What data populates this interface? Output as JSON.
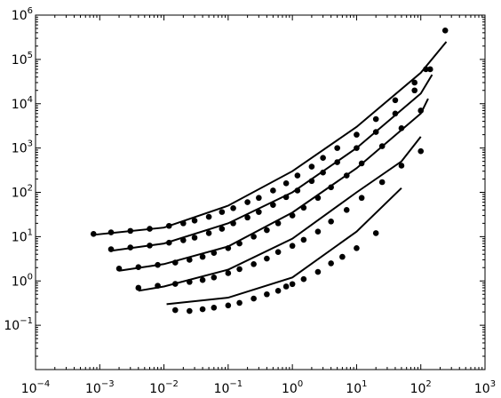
{
  "chart_data": {
    "type": "scatter",
    "title": "",
    "xlabel": "",
    "ylabel": "",
    "xscale": "log",
    "yscale": "log",
    "xlim": [
      0.0001,
      1000
    ],
    "ylim": [
      0.01,
      1000000
    ],
    "grid": false,
    "legend": "none",
    "x_ticks": [
      {
        "base": "10",
        "exp": "−4"
      },
      {
        "base": "10",
        "exp": "−3"
      },
      {
        "base": "10",
        "exp": "−2"
      },
      {
        "base": "10",
        "exp": "−1"
      },
      {
        "base": "10",
        "exp": "0"
      },
      {
        "base": "10",
        "exp": "1"
      },
      {
        "base": "10",
        "exp": "2"
      },
      {
        "base": "10",
        "exp": "3"
      }
    ],
    "y_ticks": [
      {
        "base": "10",
        "exp": "−1"
      },
      {
        "base": "10",
        "exp": "0"
      },
      {
        "base": "10",
        "exp": "1"
      },
      {
        "base": "10",
        "exp": "2"
      },
      {
        "base": "10",
        "exp": "3"
      },
      {
        "base": "10",
        "exp": "4"
      },
      {
        "base": "10",
        "exp": "5"
      },
      {
        "base": "10",
        "exp": "6"
      }
    ],
    "series": [
      {
        "marker_color": "#000000",
        "points": [
          [
            0.0008,
            11.5
          ],
          [
            0.0015,
            12.5
          ],
          [
            0.003,
            13.5
          ],
          [
            0.006,
            15
          ],
          [
            0.012,
            17.5
          ],
          [
            0.02,
            20
          ],
          [
            0.03,
            23
          ],
          [
            0.05,
            28
          ],
          [
            0.08,
            36
          ],
          [
            0.12,
            44
          ],
          [
            0.2,
            60
          ],
          [
            0.3,
            75
          ],
          [
            0.5,
            110
          ],
          [
            0.8,
            160
          ],
          [
            1.2,
            240
          ],
          [
            2,
            380
          ],
          [
            3,
            600
          ],
          [
            5,
            1000
          ],
          [
            10,
            2000
          ],
          [
            20,
            4500
          ],
          [
            40,
            12000
          ],
          [
            80,
            30000
          ],
          [
            120,
            60000
          ],
          [
            240,
            450000
          ]
        ],
        "fit": [
          [
            0.0008,
            11
          ],
          [
            0.01,
            16
          ],
          [
            0.1,
            50
          ],
          [
            1,
            300
          ],
          [
            10,
            3000
          ],
          [
            100,
            50000
          ],
          [
            250,
            250000
          ]
        ]
      },
      {
        "marker_color": "#000000",
        "points": [
          [
            0.0015,
            5.2
          ],
          [
            0.003,
            5.7
          ],
          [
            0.006,
            6.3
          ],
          [
            0.012,
            7.3
          ],
          [
            0.02,
            8.3
          ],
          [
            0.03,
            9.5
          ],
          [
            0.05,
            12
          ],
          [
            0.08,
            15
          ],
          [
            0.12,
            20
          ],
          [
            0.2,
            27
          ],
          [
            0.3,
            36
          ],
          [
            0.5,
            52
          ],
          [
            0.8,
            78
          ],
          [
            1.2,
            110
          ],
          [
            2,
            180
          ],
          [
            3,
            280
          ],
          [
            5,
            480
          ],
          [
            10,
            1000
          ],
          [
            20,
            2300
          ],
          [
            40,
            6000
          ],
          [
            80,
            20000
          ],
          [
            140,
            60000
          ]
        ],
        "fit": [
          [
            0.0015,
            4.8
          ],
          [
            0.01,
            7
          ],
          [
            0.1,
            20
          ],
          [
            1,
            100
          ],
          [
            10,
            1000
          ],
          [
            100,
            17000
          ],
          [
            150,
            45000
          ]
        ]
      },
      {
        "marker_color": "#000000",
        "points": [
          [
            0.002,
            1.9
          ],
          [
            0.004,
            2.05
          ],
          [
            0.008,
            2.3
          ],
          [
            0.015,
            2.6
          ],
          [
            0.025,
            3
          ],
          [
            0.04,
            3.5
          ],
          [
            0.06,
            4.3
          ],
          [
            0.1,
            5.5
          ],
          [
            0.15,
            7
          ],
          [
            0.25,
            10
          ],
          [
            0.4,
            14
          ],
          [
            0.6,
            20
          ],
          [
            1,
            30
          ],
          [
            1.5,
            45
          ],
          [
            2.5,
            75
          ],
          [
            4,
            130
          ],
          [
            7,
            240
          ],
          [
            12,
            450
          ],
          [
            25,
            1100
          ],
          [
            50,
            2800
          ],
          [
            100,
            7000
          ]
        ],
        "fit": [
          [
            0.002,
            1.7
          ],
          [
            0.01,
            2.4
          ],
          [
            0.1,
            6
          ],
          [
            1,
            35
          ],
          [
            10,
            350
          ],
          [
            100,
            6000
          ],
          [
            130,
            13000
          ]
        ]
      },
      {
        "marker_color": "#000000",
        "points": [
          [
            0.004,
            0.7
          ],
          [
            0.008,
            0.78
          ],
          [
            0.015,
            0.86
          ],
          [
            0.025,
            0.95
          ],
          [
            0.04,
            1.05
          ],
          [
            0.06,
            1.2
          ],
          [
            0.1,
            1.5
          ],
          [
            0.15,
            1.85
          ],
          [
            0.25,
            2.4
          ],
          [
            0.4,
            3.2
          ],
          [
            0.6,
            4.5
          ],
          [
            1,
            6.2
          ],
          [
            1.5,
            8.5
          ],
          [
            2.5,
            13
          ],
          [
            4,
            22
          ],
          [
            7,
            40
          ],
          [
            12,
            75
          ],
          [
            25,
            170
          ],
          [
            50,
            400
          ],
          [
            100,
            850
          ]
        ],
        "fit": [
          [
            0.004,
            0.6
          ],
          [
            0.01,
            0.75
          ],
          [
            0.1,
            1.8
          ],
          [
            1,
            9
          ],
          [
            10,
            100
          ],
          [
            50,
            500
          ],
          [
            100,
            1800
          ]
        ]
      },
      {
        "marker_color": "#000000",
        "points": [
          [
            0.015,
            0.22
          ],
          [
            0.025,
            0.21
          ],
          [
            0.04,
            0.23
          ],
          [
            0.06,
            0.25
          ],
          [
            0.1,
            0.28
          ],
          [
            0.15,
            0.32
          ],
          [
            0.25,
            0.4
          ],
          [
            0.4,
            0.5
          ],
          [
            0.6,
            0.6
          ],
          [
            0.8,
            0.75
          ],
          [
            1,
            0.85
          ],
          [
            1.5,
            1.1
          ],
          [
            2.5,
            1.6
          ],
          [
            4,
            2.5
          ],
          [
            6,
            3.5
          ],
          [
            10,
            5.5
          ],
          [
            20,
            12
          ]
        ],
        "fit": [
          [
            0.011,
            0.3
          ],
          [
            0.1,
            0.42
          ],
          [
            1,
            1.2
          ],
          [
            10,
            13
          ],
          [
            50,
            125
          ]
        ]
      }
    ]
  }
}
